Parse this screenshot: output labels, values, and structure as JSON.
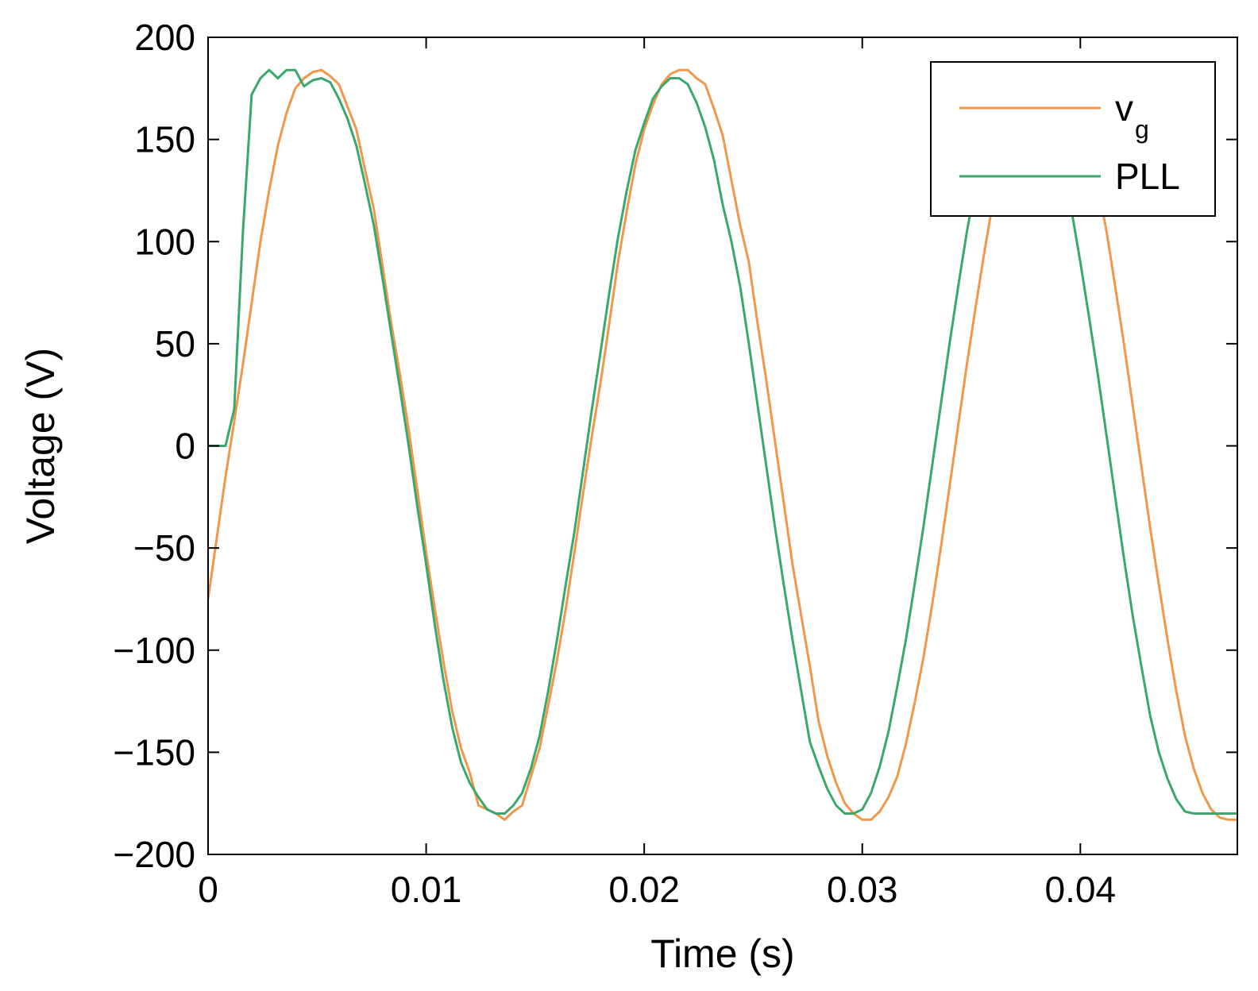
{
  "chart_data": {
    "type": "line",
    "xlabel": "Time (s)",
    "ylabel": "Voltage (V)",
    "xlim": [
      0,
      0.0472
    ],
    "ylim": [
      -200,
      200
    ],
    "xticks": [
      0,
      0.01,
      0.02,
      0.03,
      0.04
    ],
    "xtick_labels": [
      "0",
      "0.01",
      "0.02",
      "0.03",
      "0.04"
    ],
    "yticks": [
      -200,
      -150,
      -100,
      -50,
      0,
      50,
      100,
      150,
      200
    ],
    "ytick_labels": [
      "−200",
      "−150",
      "−100",
      "−50",
      "0",
      "50",
      "100",
      "150",
      "200"
    ],
    "grid": false,
    "legend_position": "top-right",
    "series": [
      {
        "name": "v",
        "name_subscript": "g",
        "color": "#f0974a",
        "points": [
          [
            0,
            -75
          ],
          [
            0.0004,
            -45
          ],
          [
            0.0008,
            -15
          ],
          [
            0.0012,
            12
          ],
          [
            0.0016,
            40
          ],
          [
            0.002,
            70
          ],
          [
            0.0024,
            100
          ],
          [
            0.0028,
            125
          ],
          [
            0.0032,
            147
          ],
          [
            0.0036,
            163
          ],
          [
            0.004,
            175
          ],
          [
            0.0044,
            180
          ],
          [
            0.0048,
            183
          ],
          [
            0.0052,
            184
          ],
          [
            0.0056,
            181
          ],
          [
            0.006,
            177
          ],
          [
            0.0064,
            166
          ],
          [
            0.0068,
            155
          ],
          [
            0.0072,
            135
          ],
          [
            0.0076,
            116
          ],
          [
            0.008,
            88
          ],
          [
            0.0084,
            60
          ],
          [
            0.0088,
            35
          ],
          [
            0.0092,
            8
          ],
          [
            0.0096,
            -22
          ],
          [
            0.01,
            -52
          ],
          [
            0.0104,
            -80
          ],
          [
            0.0108,
            -106
          ],
          [
            0.0112,
            -130
          ],
          [
            0.0116,
            -148
          ],
          [
            0.012,
            -160
          ],
          [
            0.0124,
            -176
          ],
          [
            0.0128,
            -178
          ],
          [
            0.0132,
            -180
          ],
          [
            0.0136,
            -183
          ],
          [
            0.014,
            -179
          ],
          [
            0.0144,
            -176
          ],
          [
            0.0148,
            -162
          ],
          [
            0.0152,
            -148
          ],
          [
            0.0156,
            -127
          ],
          [
            0.016,
            -105
          ],
          [
            0.0164,
            -80
          ],
          [
            0.0168,
            -52
          ],
          [
            0.0172,
            -23
          ],
          [
            0.0176,
            5
          ],
          [
            0.018,
            31
          ],
          [
            0.0184,
            60
          ],
          [
            0.0188,
            90
          ],
          [
            0.0192,
            115
          ],
          [
            0.0196,
            138
          ],
          [
            0.02,
            155
          ],
          [
            0.0204,
            167
          ],
          [
            0.0208,
            177
          ],
          [
            0.0212,
            182
          ],
          [
            0.0216,
            184
          ],
          [
            0.022,
            184
          ],
          [
            0.0224,
            180
          ],
          [
            0.0228,
            177
          ],
          [
            0.0232,
            165
          ],
          [
            0.0236,
            152
          ],
          [
            0.024,
            130
          ],
          [
            0.0244,
            108
          ],
          [
            0.0248,
            90
          ],
          [
            0.0252,
            60
          ],
          [
            0.0256,
            32
          ],
          [
            0.026,
            2
          ],
          [
            0.0264,
            -28
          ],
          [
            0.0268,
            -58
          ],
          [
            0.0272,
            -83
          ],
          [
            0.0276,
            -108
          ],
          [
            0.028,
            -135
          ],
          [
            0.0284,
            -152
          ],
          [
            0.0288,
            -165
          ],
          [
            0.0292,
            -175
          ],
          [
            0.0296,
            -180
          ],
          [
            0.03,
            -183
          ],
          [
            0.0304,
            -183
          ],
          [
            0.0308,
            -179
          ],
          [
            0.0312,
            -172
          ],
          [
            0.0316,
            -162
          ],
          [
            0.032,
            -146
          ],
          [
            0.0324,
            -126
          ],
          [
            0.0328,
            -104
          ],
          [
            0.0332,
            -78
          ],
          [
            0.0336,
            -50
          ],
          [
            0.034,
            -20
          ],
          [
            0.0344,
            10
          ],
          [
            0.0348,
            40
          ],
          [
            0.0352,
            68
          ],
          [
            0.0356,
            95
          ],
          [
            0.036,
            120
          ],
          [
            0.0364,
            140
          ],
          [
            0.0368,
            156
          ],
          [
            0.0372,
            167
          ],
          [
            0.0376,
            177
          ],
          [
            0.038,
            182
          ],
          [
            0.0384,
            184
          ],
          [
            0.0388,
            184
          ],
          [
            0.0392,
            180
          ],
          [
            0.0396,
            176
          ],
          [
            0.04,
            163
          ],
          [
            0.0404,
            150
          ],
          [
            0.0408,
            127
          ],
          [
            0.0412,
            105
          ],
          [
            0.0416,
            78
          ],
          [
            0.042,
            50
          ],
          [
            0.0424,
            20
          ],
          [
            0.0428,
            -10
          ],
          [
            0.0432,
            -40
          ],
          [
            0.0436,
            -68
          ],
          [
            0.044,
            -95
          ],
          [
            0.0444,
            -120
          ],
          [
            0.0448,
            -142
          ],
          [
            0.0452,
            -158
          ],
          [
            0.0456,
            -170
          ],
          [
            0.046,
            -178
          ],
          [
            0.0464,
            -182
          ],
          [
            0.0468,
            -183
          ],
          [
            0.0472,
            -183
          ]
        ]
      },
      {
        "name": "PLL",
        "color": "#3aa86b",
        "points": [
          [
            0,
            0
          ],
          [
            0.0004,
            0
          ],
          [
            0.0008,
            0
          ],
          [
            0.0012,
            18
          ],
          [
            0.0016,
            105
          ],
          [
            0.002,
            172
          ],
          [
            0.0024,
            180
          ],
          [
            0.0028,
            184
          ],
          [
            0.0032,
            180
          ],
          [
            0.0036,
            184
          ],
          [
            0.004,
            184
          ],
          [
            0.0044,
            176
          ],
          [
            0.0048,
            179
          ],
          [
            0.0052,
            180
          ],
          [
            0.0056,
            178
          ],
          [
            0.006,
            170
          ],
          [
            0.0064,
            160
          ],
          [
            0.0068,
            147
          ],
          [
            0.0072,
            128
          ],
          [
            0.0076,
            108
          ],
          [
            0.008,
            82
          ],
          [
            0.0084,
            55
          ],
          [
            0.0088,
            28
          ],
          [
            0.0092,
            0
          ],
          [
            0.0096,
            -30
          ],
          [
            0.01,
            -58
          ],
          [
            0.0104,
            -88
          ],
          [
            0.0108,
            -115
          ],
          [
            0.0112,
            -138
          ],
          [
            0.0116,
            -155
          ],
          [
            0.012,
            -165
          ],
          [
            0.0124,
            -172
          ],
          [
            0.0128,
            -178
          ],
          [
            0.0132,
            -180
          ],
          [
            0.0136,
            -180
          ],
          [
            0.014,
            -176
          ],
          [
            0.0144,
            -170
          ],
          [
            0.0148,
            -158
          ],
          [
            0.0152,
            -142
          ],
          [
            0.0156,
            -120
          ],
          [
            0.016,
            -95
          ],
          [
            0.0164,
            -68
          ],
          [
            0.0168,
            -42
          ],
          [
            0.0172,
            -12
          ],
          [
            0.0176,
            18
          ],
          [
            0.018,
            46
          ],
          [
            0.0184,
            75
          ],
          [
            0.0188,
            102
          ],
          [
            0.0192,
            125
          ],
          [
            0.0196,
            145
          ],
          [
            0.02,
            158
          ],
          [
            0.0204,
            170
          ],
          [
            0.0208,
            176
          ],
          [
            0.0212,
            180
          ],
          [
            0.0216,
            180
          ],
          [
            0.022,
            177
          ],
          [
            0.0224,
            168
          ],
          [
            0.0228,
            156
          ],
          [
            0.0232,
            140
          ],
          [
            0.0236,
            118
          ],
          [
            0.024,
            100
          ],
          [
            0.0244,
            78
          ],
          [
            0.0248,
            50
          ],
          [
            0.0252,
            20
          ],
          [
            0.0256,
            -10
          ],
          [
            0.026,
            -40
          ],
          [
            0.0264,
            -68
          ],
          [
            0.0268,
            -95
          ],
          [
            0.0272,
            -120
          ],
          [
            0.0276,
            -145
          ],
          [
            0.028,
            -157
          ],
          [
            0.0284,
            -168
          ],
          [
            0.0288,
            -176
          ],
          [
            0.0292,
            -180
          ],
          [
            0.0296,
            -180
          ],
          [
            0.03,
            -178
          ],
          [
            0.0304,
            -170
          ],
          [
            0.0308,
            -157
          ],
          [
            0.0312,
            -140
          ],
          [
            0.0316,
            -118
          ],
          [
            0.032,
            -95
          ],
          [
            0.0324,
            -68
          ],
          [
            0.0328,
            -40
          ],
          [
            0.0332,
            -10
          ],
          [
            0.0336,
            20
          ],
          [
            0.034,
            50
          ],
          [
            0.0344,
            78
          ],
          [
            0.0348,
            105
          ],
          [
            0.0352,
            128
          ],
          [
            0.0356,
            147
          ],
          [
            0.036,
            162
          ],
          [
            0.0364,
            172
          ],
          [
            0.0368,
            178
          ],
          [
            0.0372,
            180
          ],
          [
            0.0376,
            180
          ],
          [
            0.038,
            176
          ],
          [
            0.0384,
            167
          ],
          [
            0.0388,
            155
          ],
          [
            0.0392,
            137
          ],
          [
            0.0396,
            115
          ],
          [
            0.04,
            90
          ],
          [
            0.0404,
            63
          ],
          [
            0.0408,
            35
          ],
          [
            0.0412,
            5
          ],
          [
            0.0416,
            -25
          ],
          [
            0.042,
            -55
          ],
          [
            0.0424,
            -83
          ],
          [
            0.0428,
            -108
          ],
          [
            0.0432,
            -132
          ],
          [
            0.0436,
            -150
          ],
          [
            0.044,
            -163
          ],
          [
            0.0444,
            -173
          ],
          [
            0.0448,
            -179
          ],
          [
            0.0452,
            -180
          ],
          [
            0.0456,
            -180
          ],
          [
            0.046,
            -180
          ],
          [
            0.0464,
            -180
          ],
          [
            0.0468,
            -180
          ],
          [
            0.0472,
            -180
          ]
        ]
      }
    ]
  }
}
